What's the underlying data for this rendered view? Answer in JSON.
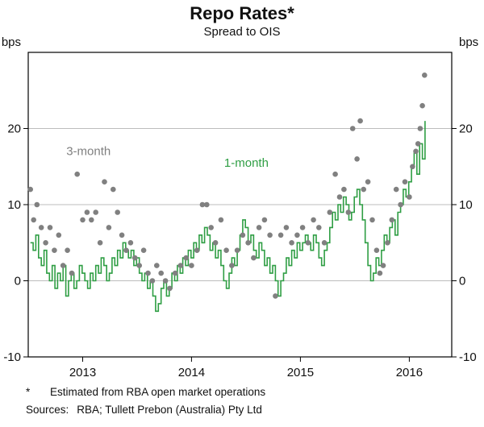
{
  "chart_data": {
    "type": "line+scatter",
    "title": "Repo Rates*",
    "subtitle": "Spread to OIS",
    "unit": "bps",
    "ylim": [
      -10,
      30
    ],
    "y_ticks": [
      -10,
      0,
      10,
      20
    ],
    "grid_y": [
      0,
      10,
      20
    ],
    "xlim": [
      2012.5,
      2016.39
    ],
    "x_ticks": [
      2013,
      2014,
      2015,
      2016
    ],
    "legend_position": "inline-labels",
    "grid": true,
    "series": [
      {
        "name": "3-month",
        "type": "scatter",
        "color": "#808080",
        "points": [
          [
            2012.52,
            12
          ],
          [
            2012.55,
            8
          ],
          [
            2012.58,
            10
          ],
          [
            2012.62,
            7
          ],
          [
            2012.66,
            5
          ],
          [
            2012.7,
            7
          ],
          [
            2012.74,
            4
          ],
          [
            2012.78,
            6
          ],
          [
            2012.82,
            2
          ],
          [
            2012.86,
            4
          ],
          [
            2012.9,
            1
          ],
          [
            2012.95,
            14
          ],
          [
            2013.0,
            8
          ],
          [
            2013.04,
            9
          ],
          [
            2013.08,
            8
          ],
          [
            2013.12,
            9
          ],
          [
            2013.16,
            5
          ],
          [
            2013.2,
            13
          ],
          [
            2013.24,
            7
          ],
          [
            2013.28,
            12
          ],
          [
            2013.32,
            9
          ],
          [
            2013.36,
            6
          ],
          [
            2013.4,
            4
          ],
          [
            2013.44,
            5
          ],
          [
            2013.48,
            3
          ],
          [
            2013.52,
            2
          ],
          [
            2013.56,
            4
          ],
          [
            2013.6,
            1
          ],
          [
            2013.64,
            0
          ],
          [
            2013.68,
            2
          ],
          [
            2013.72,
            1
          ],
          [
            2013.76,
            0
          ],
          [
            2013.8,
            -1
          ],
          [
            2013.85,
            1
          ],
          [
            2013.9,
            2
          ],
          [
            2013.95,
            3
          ],
          [
            2014.0,
            2
          ],
          [
            2014.05,
            4
          ],
          [
            2014.1,
            10
          ],
          [
            2014.14,
            10
          ],
          [
            2014.18,
            7
          ],
          [
            2014.22,
            5
          ],
          [
            2014.27,
            8
          ],
          [
            2014.32,
            4
          ],
          [
            2014.37,
            2
          ],
          [
            2014.42,
            4
          ],
          [
            2014.47,
            6
          ],
          [
            2014.52,
            5
          ],
          [
            2014.57,
            3
          ],
          [
            2014.62,
            7
          ],
          [
            2014.67,
            8
          ],
          [
            2014.72,
            6
          ],
          [
            2014.77,
            -2
          ],
          [
            2014.82,
            6
          ],
          [
            2014.87,
            7
          ],
          [
            2014.92,
            5
          ],
          [
            2014.97,
            6
          ],
          [
            2015.02,
            7
          ],
          [
            2015.07,
            5
          ],
          [
            2015.12,
            8
          ],
          [
            2015.17,
            7
          ],
          [
            2015.22,
            5
          ],
          [
            2015.27,
            9
          ],
          [
            2015.32,
            14
          ],
          [
            2015.36,
            11
          ],
          [
            2015.4,
            12
          ],
          [
            2015.44,
            9
          ],
          [
            2015.48,
            20
          ],
          [
            2015.52,
            16
          ],
          [
            2015.55,
            21
          ],
          [
            2015.58,
            12
          ],
          [
            2015.62,
            13
          ],
          [
            2015.66,
            8
          ],
          [
            2015.7,
            4
          ],
          [
            2015.73,
            1
          ],
          [
            2015.76,
            2
          ],
          [
            2015.8,
            5
          ],
          [
            2015.84,
            8
          ],
          [
            2015.88,
            12
          ],
          [
            2015.92,
            10
          ],
          [
            2015.96,
            13
          ],
          [
            2016.0,
            11
          ],
          [
            2016.03,
            15
          ],
          [
            2016.06,
            17
          ],
          [
            2016.08,
            18
          ],
          [
            2016.1,
            20
          ],
          [
            2016.12,
            23
          ],
          [
            2016.14,
            27
          ]
        ]
      },
      {
        "name": "1-month",
        "type": "step-line",
        "color": "#2f9e44",
        "x_start": 2012.52,
        "x_step": 0.025,
        "values": [
          5,
          4,
          6,
          3,
          2,
          4,
          1,
          0,
          2,
          -1,
          1,
          0,
          2,
          -2,
          0,
          1,
          -1,
          0,
          2,
          1,
          0,
          -1,
          1,
          0,
          2,
          1,
          3,
          2,
          0,
          1,
          3,
          2,
          4,
          3,
          5,
          4,
          3,
          4,
          2,
          3,
          1,
          0,
          1,
          -1,
          0,
          -2,
          -4,
          -3,
          -1,
          0,
          -2,
          -1,
          1,
          0,
          2,
          1,
          3,
          2,
          4,
          3,
          5,
          4,
          6,
          5,
          7,
          6,
          4,
          5,
          3,
          4,
          2,
          0,
          -1,
          1,
          3,
          2,
          4,
          6,
          8,
          7,
          5,
          6,
          4,
          3,
          5,
          4,
          2,
          3,
          1,
          2,
          0,
          -2,
          0,
          1,
          3,
          2,
          4,
          3,
          5,
          4,
          5,
          6,
          5,
          4,
          6,
          5,
          3,
          2,
          4,
          5,
          7,
          9,
          8,
          10,
          9,
          11,
          10,
          8,
          9,
          11,
          12,
          10,
          8,
          5,
          2,
          0,
          1,
          3,
          2,
          4,
          6,
          5,
          7,
          8,
          6,
          9,
          10,
          12,
          11,
          13,
          15,
          17,
          14,
          18,
          16,
          21
        ]
      }
    ],
    "labels": [
      {
        "text": "3-month",
        "x": 2012.85,
        "y": 16.5,
        "color": "#808080"
      },
      {
        "text": "1-month",
        "x": 2014.3,
        "y": 15.0,
        "color": "#2f9e44"
      }
    ]
  },
  "notes": {
    "footnote_marker": "*",
    "footnote": "Estimated from RBA open market operations",
    "sources_label": "Sources:",
    "sources": "RBA; Tullett Prebon (Australia) Pty Ltd"
  }
}
